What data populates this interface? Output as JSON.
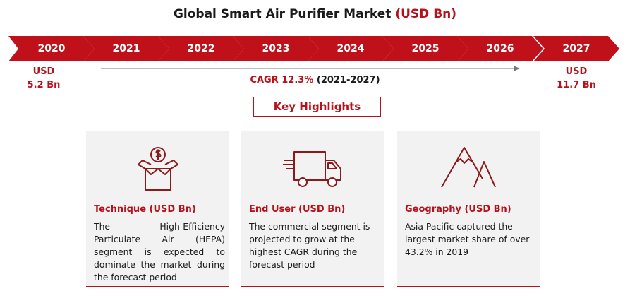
{
  "title": {
    "main": "Global Smart Air Purifier Market",
    "unit": "(USD Bn)"
  },
  "timeline": {
    "years": [
      "2020",
      "2021",
      "2022",
      "2023",
      "2024",
      "2025",
      "2026",
      "2027"
    ]
  },
  "start_value": {
    "currency": "USD",
    "amount": "5.2 Bn"
  },
  "end_value": {
    "currency": "USD",
    "amount": "11.7 Bn"
  },
  "cagr": {
    "label": "CAGR 12.3%",
    "period": "(2021-2027)"
  },
  "highlights": {
    "heading": "Key Highlights",
    "cards": [
      {
        "icon": "money-box-icon",
        "title": "Technique (USD Bn)",
        "text": "The High-Efficiency Particulate Air (HEPA) segment is expected to dominate the market during the forecast period"
      },
      {
        "icon": "delivery-truck-icon",
        "title": "End User (USD Bn)",
        "text": "The commercial segment is projected to grow at the highest CAGR during the forecast period"
      },
      {
        "icon": "mountain-icon",
        "title": "Geography (USD Bn)",
        "text": "Asia Pacific captured the largest market share of over 43.2% in 2019"
      }
    ]
  },
  "colors": {
    "accent": "#c0111b",
    "card_bg": "#f2f2f2",
    "text": "#1a1a1a"
  }
}
